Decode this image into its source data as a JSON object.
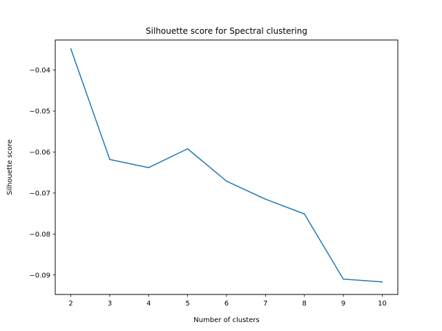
{
  "chart_data": {
    "type": "line",
    "title": "Silhouette score for Spectral clustering",
    "xlabel": "Number of clusters",
    "ylabel": "Silhouette score",
    "x": [
      2,
      3,
      4,
      5,
      6,
      7,
      8,
      9,
      10
    ],
    "xticks": [
      "2",
      "3",
      "4",
      "5",
      "6",
      "7",
      "8",
      "9",
      "10"
    ],
    "yticks": [
      -0.04,
      -0.05,
      -0.06,
      -0.07,
      -0.08,
      -0.09
    ],
    "ytick_labels": [
      "−0.04",
      "−0.05",
      "−0.06",
      "−0.07",
      "−0.08",
      "−0.09"
    ],
    "series": [
      {
        "values": [
          -0.0348,
          -0.0618,
          -0.0638,
          -0.0592,
          -0.0671,
          -0.0715,
          -0.0751,
          -0.091,
          -0.0917
        ],
        "color": "#1f77b4"
      }
    ],
    "xlim": [
      1.6,
      10.4
    ],
    "ylim": [
      -0.09475,
      -0.03265
    ],
    "grid": false,
    "legend": "none"
  }
}
